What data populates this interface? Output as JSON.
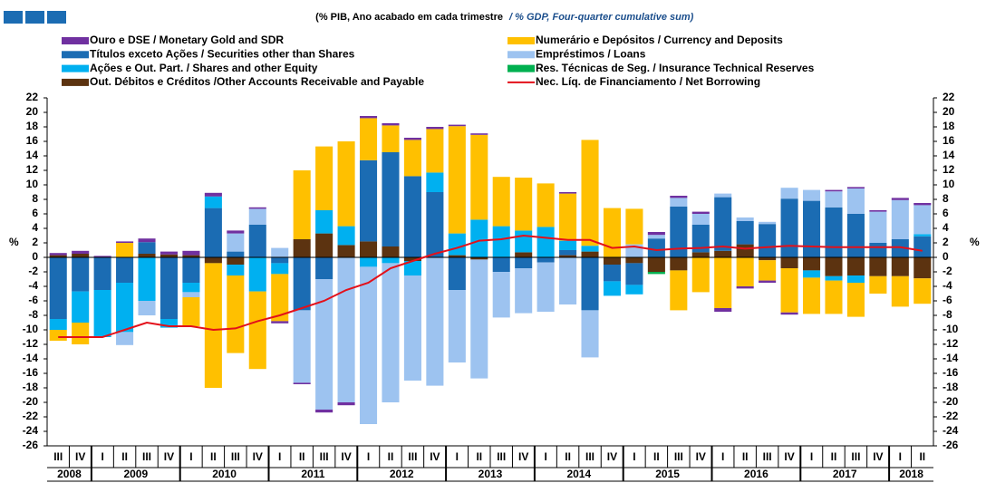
{
  "chart_data": {
    "type": "stacked-bar",
    "subtitle": "(% PIB, Ano acabado em cada trimestre",
    "subtitle_en": "/ % GDP, Four-quarter cumulative sum)",
    "y_label": "%",
    "categories": [
      "III",
      "IV",
      "I",
      "II",
      "III",
      "IV",
      "I",
      "II",
      "III",
      "IV",
      "I",
      "II",
      "III",
      "IV",
      "I",
      "II",
      "III",
      "IV",
      "I",
      "II",
      "III",
      "IV",
      "I",
      "II",
      "III",
      "IV",
      "I",
      "II",
      "III",
      "IV",
      "I",
      "II",
      "III",
      "IV",
      "I",
      "II",
      "III",
      "IV",
      "I",
      "II"
    ],
    "years": [
      "2008",
      "2009",
      "2010",
      "2011",
      "2012",
      "2013",
      "2014",
      "2015",
      "2016",
      "2017",
      "2018"
    ],
    "ylim": [
      -26,
      22
    ],
    "yticks": [
      22,
      20,
      18,
      16,
      14,
      12,
      10,
      8,
      6,
      4,
      2,
      0,
      -2,
      -4,
      -6,
      -8,
      -10,
      -12,
      -14,
      -16,
      -18,
      -20,
      -22,
      -24,
      -26
    ],
    "series": [
      {
        "name": "Ouro e DSE / Monetary Gold and SDR",
        "color": "#7030a0",
        "values": [
          0.3,
          0.4,
          0.2,
          0.2,
          0.5,
          0.4,
          0.6,
          0.5,
          0.4,
          0.2,
          -0.3,
          -0.2,
          -0.4,
          -0.4,
          0.3,
          0.3,
          0.3,
          0.3,
          0.2,
          0.2,
          0,
          0,
          0,
          0.2,
          0,
          0,
          0,
          0.4,
          0.3,
          0.3,
          -0.5,
          -0.3,
          -0.3,
          -0.3,
          0,
          0.2,
          0.2,
          0.2,
          0.3,
          0.3
        ]
      },
      {
        "name": "Títulos exceto Ações / Securities other than Shares",
        "color": "#1b6cb3",
        "values": [
          -8.5,
          -4.7,
          -4.5,
          -3.5,
          1.6,
          -8.5,
          -3.5,
          6.8,
          0.8,
          4.5,
          -0.8,
          -7.3,
          -3,
          0,
          11.2,
          13,
          11.2,
          9,
          -4.5,
          0,
          -2,
          -1.5,
          -0.7,
          0.7,
          -7.3,
          -2.3,
          -3,
          2.6,
          7,
          3.8,
          7.4,
          3.2,
          4.6,
          8.1,
          7.8,
          6.9,
          6,
          2,
          2.5,
          2.9
        ]
      },
      {
        "name": "Ações e Out. Part. / Shares and other Equity",
        "color": "#00b0f0",
        "values": [
          -1.5,
          -4.3,
          -6.5,
          -6.8,
          -6,
          -1.2,
          -1.3,
          1.6,
          -1.5,
          -4.7,
          -1.5,
          0,
          3.2,
          2.6,
          -1.3,
          -0.8,
          -2,
          2.7,
          3,
          5.2,
          4.3,
          3,
          4.2,
          1.3,
          0.8,
          -2,
          -1.3,
          0,
          0,
          0,
          0,
          0,
          0,
          0,
          -1,
          -0.6,
          -1,
          0,
          0,
          0.3
        ]
      },
      {
        "name": "Out. Débitos e Créditos /Other Accounts Receivable and Payable",
        "color": "#5c3310",
        "values": [
          0.3,
          0.5,
          0,
          0,
          0.5,
          0.4,
          0.3,
          -0.8,
          -1,
          0,
          0,
          2.5,
          3.3,
          1.7,
          2.2,
          1.5,
          -0.5,
          0,
          0.3,
          -0.3,
          0,
          0.7,
          0,
          0.3,
          0.8,
          -1,
          -0.8,
          -2,
          -1.8,
          0.7,
          0.9,
          1.8,
          -0.4,
          -1.5,
          -1.8,
          -2.6,
          -2.5,
          -2.6,
          -2.6,
          -2.9
        ]
      },
      {
        "name": "Numerário e Depósitos / Currency and Deposits",
        "color": "#ffc000",
        "values": [
          -1.5,
          -3,
          0,
          2,
          0,
          0,
          -4,
          -17.2,
          -10.7,
          -10.7,
          -6.5,
          9.5,
          8.8,
          11.7,
          5.8,
          3.7,
          5,
          6,
          14.8,
          11.7,
          6.8,
          7.3,
          6,
          6.5,
          14.6,
          6.8,
          4.9,
          0,
          -5.5,
          -4.8,
          -7,
          -4,
          -2.8,
          -6.1,
          -5,
          -4.6,
          -4.7,
          -2.4,
          -4.2,
          -3.5
        ]
      },
      {
        "name": "Empréstimos / Loans",
        "color": "#9dc3f0",
        "values": [
          0,
          0,
          0,
          -1.8,
          -2,
          0,
          -0.7,
          0,
          2.5,
          2.2,
          1.3,
          -10,
          -18,
          -20,
          -21.7,
          -19.2,
          -14.5,
          -17.7,
          -10,
          -16.4,
          -6.3,
          -6.2,
          -6.8,
          -6.5,
          -6.5,
          0,
          1.8,
          0.5,
          1.2,
          1.5,
          0.5,
          0.5,
          0.3,
          1.5,
          1.5,
          2.2,
          3.5,
          4.3,
          5.4,
          4
        ]
      },
      {
        "name": "Res. Técnicas de Seg. / Insurance Technical Reserves",
        "color": "#00b050",
        "values": [
          0,
          0,
          0,
          0,
          0,
          0,
          0,
          0,
          0,
          0,
          0,
          0,
          0,
          0,
          0,
          0,
          0,
          0,
          0,
          0,
          0,
          0,
          0,
          0,
          0,
          0,
          0,
          -0.3,
          0,
          0,
          0,
          0,
          0,
          0,
          0,
          0,
          0,
          0,
          0,
          0
        ]
      }
    ],
    "line": {
      "name": "Nec. Líq. de Financiamento / Net Borrowing",
      "color": "#e3101a",
      "values": [
        -11,
        -11,
        -11,
        -10,
        -9,
        -9.5,
        -9.5,
        -10,
        -9.8,
        -8.8,
        -8,
        -7,
        -6,
        -4.5,
        -3.5,
        -1.5,
        -0.5,
        0.5,
        1.3,
        2.3,
        2.5,
        3,
        2.7,
        2.4,
        2.4,
        1.3,
        1.5,
        1,
        1.2,
        1.3,
        1.5,
        1.2,
        1.4,
        1.6,
        1.5,
        1.4,
        1.4,
        1.4,
        1.4,
        0.9
      ]
    }
  }
}
